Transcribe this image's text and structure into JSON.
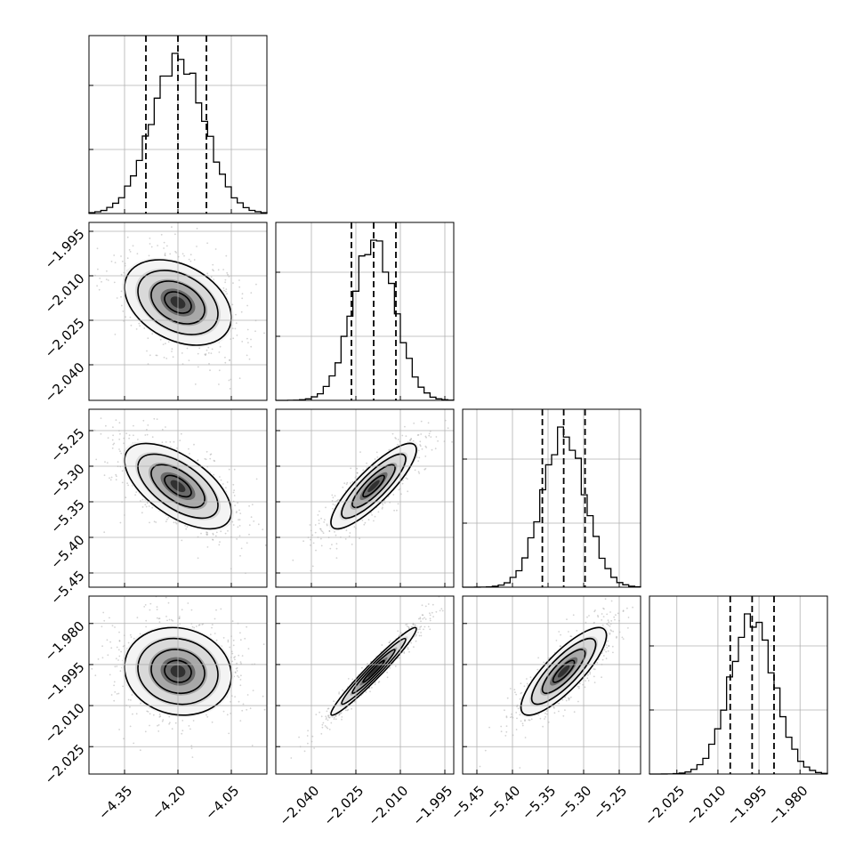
{
  "chart_data": {
    "type": "corner",
    "parameters": [
      {
        "range": [
          -4.45,
          -3.95
        ],
        "ticks": [
          -4.35,
          -4.2,
          -4.05
        ],
        "tick_labels": [
          "−4.35",
          "−4.20",
          "−4.05"
        ],
        "quantiles": [
          -4.29,
          -4.2,
          -4.12
        ],
        "median": -4.2,
        "sigma": 0.075
      },
      {
        "range": [
          -2.052,
          -1.992
        ],
        "ticks": [
          -2.04,
          -2.025,
          -2.01,
          -1.995
        ],
        "tick_labels": [
          "−2.040",
          "−2.025",
          "−2.010",
          "−1.995"
        ],
        "quantiles": [
          -2.0265,
          -2.019,
          -2.0115
        ],
        "median": -2.019,
        "sigma": 0.0072
      },
      {
        "range": [
          -5.47,
          -5.22
        ],
        "ticks": [
          -5.45,
          -5.4,
          -5.35,
          -5.3,
          -5.25
        ],
        "tick_labels": [
          "−5.45",
          "−5.40",
          "−5.35",
          "−5.30",
          "−5.25"
        ],
        "quantiles": [
          -5.358,
          -5.328,
          -5.298
        ],
        "median": -5.328,
        "sigma": 0.03
      },
      {
        "range": [
          -2.035,
          -1.97
        ],
        "ticks": [
          -2.025,
          -2.01,
          -1.995,
          -1.98
        ],
        "tick_labels": [
          "−2.025",
          "−2.010",
          "−1.995",
          "−1.980"
        ],
        "quantiles": [
          -2.0055,
          -1.9975,
          -1.9895
        ],
        "median": -1.9975,
        "sigma": 0.008
      }
    ],
    "correlations": [
      [
        1.0,
        -0.35,
        -0.6,
        -0.1
      ],
      [
        -0.35,
        1.0,
        0.85,
        0.97
      ],
      [
        -0.6,
        0.85,
        1.0,
        0.82
      ],
      [
        -0.1,
        0.97,
        0.82,
        1.0
      ]
    ],
    "histogram_bins": 30,
    "contour_levels_sigma": [
      0.5,
      1.0,
      1.5,
      2.0
    ],
    "grid": true,
    "colors": {
      "ink": "#000000",
      "grid": "#b0b0b0",
      "scatter": "#808080"
    }
  }
}
